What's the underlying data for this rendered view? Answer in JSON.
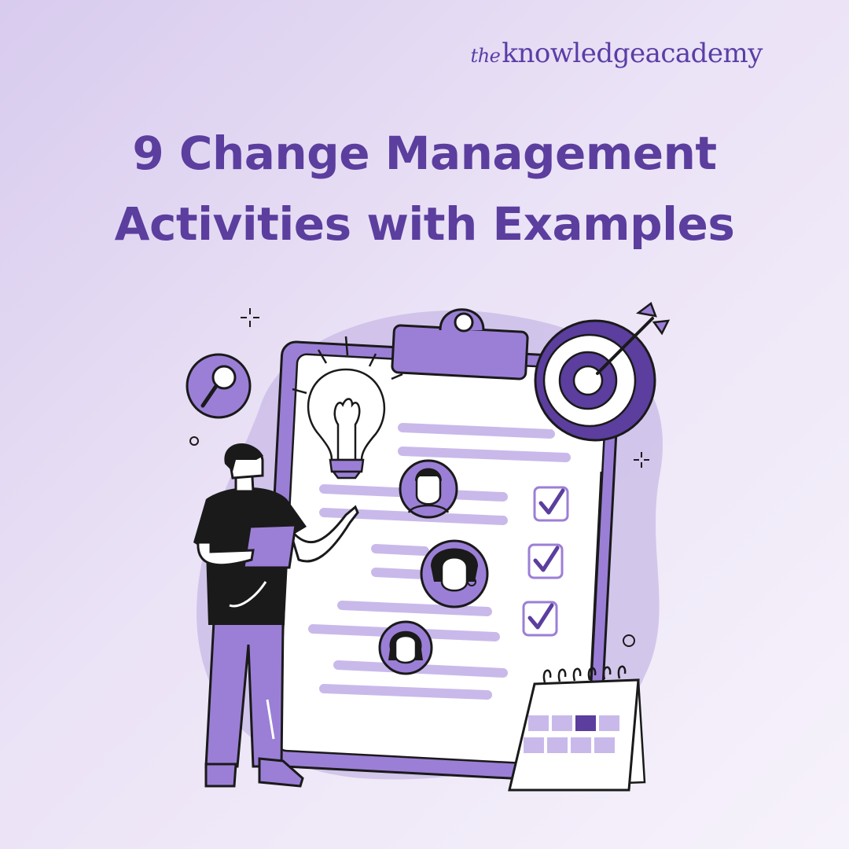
{
  "brand": {
    "prefix": "the",
    "name_part1": "knowledge",
    "name_part2": "academy"
  },
  "title": {
    "line1": "9 Change Management",
    "line2": "Activities with Examples"
  },
  "colors": {
    "accent": "#5b3e9e",
    "purple_fill": "#9b7fd6",
    "light_purple": "#c9b9ea",
    "outline": "#1a1a1a"
  },
  "icons": [
    "magnifier-icon",
    "lightbulb-icon",
    "target-icon",
    "checkbox-icon",
    "calendar-icon",
    "person-avatar-icon"
  ]
}
